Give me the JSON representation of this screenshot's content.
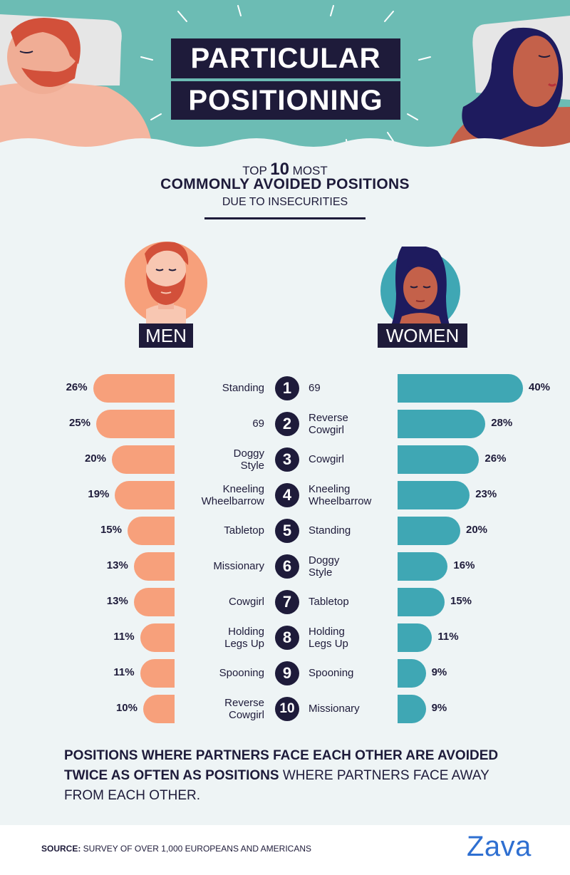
{
  "header": {
    "title_line1": "PARTICULAR",
    "title_line2": "POSITIONING"
  },
  "subtitle": {
    "line1_pre": "TOP ",
    "line1_number": "10",
    "line1_post": " MOST",
    "line2": "COMMONLY AVOIDED POSITIONS",
    "line3": "DUE TO INSECURITIES"
  },
  "labels": {
    "men": "MEN",
    "women": "WOMEN"
  },
  "colors": {
    "men_bar": "#f7a07b",
    "women_bar": "#3fa7b4",
    "navy": "#1e1b3a",
    "header_teal": "#6cbcb4",
    "brand_blue": "#2e6fd1"
  },
  "chart_data": {
    "type": "bar",
    "orientation": "horizontal-butterfly",
    "ranks": [
      "1",
      "2",
      "3",
      "4",
      "5",
      "6",
      "7",
      "8",
      "9",
      "10"
    ],
    "series": [
      {
        "name": "MEN",
        "positions": [
          "Standing",
          "69",
          "Doggy Style",
          "Kneeling Wheelbarrow",
          "Tabletop",
          "Missionary",
          "Cowgirl",
          "Holding Legs Up",
          "Spooning",
          "Reverse Cowgirl"
        ],
        "values": [
          26,
          25,
          20,
          19,
          15,
          13,
          13,
          11,
          11,
          10
        ],
        "labels": [
          "26%",
          "25%",
          "20%",
          "19%",
          "15%",
          "13%",
          "13%",
          "11%",
          "11%",
          "10%"
        ]
      },
      {
        "name": "WOMEN",
        "positions": [
          "69",
          "Reverse Cowgirl",
          "Cowgirl",
          "Kneeling Wheelbarrow",
          "Standing",
          "Doggy Style",
          "Tabletop",
          "Holding Legs Up",
          "Spooning",
          "Missionary"
        ],
        "values": [
          40,
          28,
          26,
          23,
          20,
          16,
          15,
          11,
          9,
          9
        ],
        "labels": [
          "40%",
          "28%",
          "26%",
          "23%",
          "20%",
          "16%",
          "15%",
          "11%",
          "9%",
          "9%"
        ]
      }
    ],
    "unit": "%"
  },
  "note": {
    "bold": "POSITIONS WHERE PARTNERS FACE EACH OTHER ARE AVOIDED TWICE AS OFTEN AS POSITIONS",
    "regular": " WHERE PARTNERS FACE AWAY FROM EACH OTHER."
  },
  "footer": {
    "source_label": "SOURCE:",
    "source_text": " SURVEY OF OVER 1,000 EUROPEANS AND AMERICANS",
    "brand": "Zava"
  }
}
